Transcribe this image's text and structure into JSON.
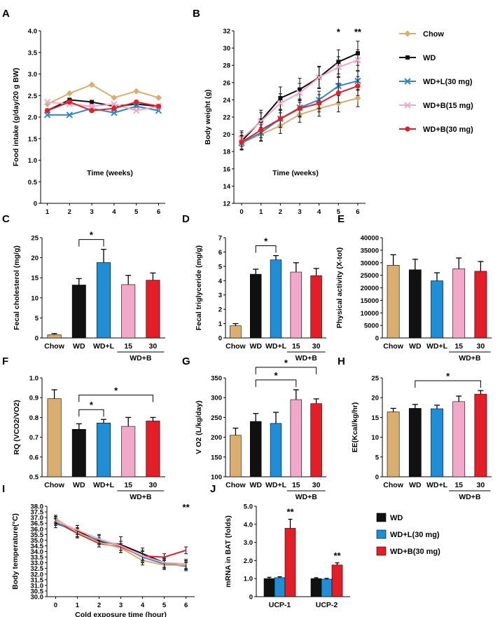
{
  "legend_top": {
    "entries": [
      {
        "name": "Chow",
        "color": "#D9AE6E",
        "marker": "diamond"
      },
      {
        "name": "WD",
        "color": "#111111",
        "marker": "square"
      },
      {
        "name": "WD+L(30 mg)",
        "color": "#2F86C8",
        "marker": "x"
      },
      {
        "name": "WD+B(15 mg)",
        "color": "#F2A9C9",
        "marker": "x"
      },
      {
        "name": "WD+B(30 mg)",
        "color": "#E41E26",
        "marker": "circle"
      }
    ]
  },
  "legend_j": {
    "entries": [
      {
        "name": "WD",
        "color": "#111111"
      },
      {
        "name": "WD+L(30 mg)",
        "color": "#1E8FD6"
      },
      {
        "name": "WD+B(30 mg)",
        "color": "#E41E26"
      }
    ]
  },
  "chart_data": [
    {
      "id": "A",
      "type": "line",
      "panel_label": "A",
      "ylabel": "Food intake (g/day/20 g BW)",
      "xlabel": "Time (weeks)",
      "x": [
        1,
        2,
        3,
        4,
        5,
        6
      ],
      "xlim": [
        0.7,
        6.3
      ],
      "ylim": [
        0,
        4.0
      ],
      "yticks": [
        "0",
        "0.5",
        "1.0",
        "1.5",
        "2.0",
        "2.5",
        "3.0",
        "3.5",
        "4.0"
      ],
      "xticks": [
        "1",
        "2",
        "3",
        "4",
        "5",
        "6"
      ],
      "series": [
        {
          "name": "Chow",
          "values": [
            2.3,
            2.55,
            2.75,
            2.45,
            2.6,
            2.45
          ]
        },
        {
          "name": "WD",
          "values": [
            2.15,
            2.4,
            2.35,
            2.25,
            2.3,
            2.25
          ]
        },
        {
          "name": "WD+L(30 mg)",
          "values": [
            2.05,
            2.05,
            2.2,
            2.1,
            2.25,
            2.15
          ]
        },
        {
          "name": "WD+B(15 mg)",
          "values": [
            2.35,
            2.3,
            2.25,
            2.3,
            2.15,
            2.25
          ]
        },
        {
          "name": "WD+B(30 mg)",
          "values": [
            2.15,
            2.35,
            2.15,
            2.2,
            2.35,
            2.25
          ]
        }
      ]
    },
    {
      "id": "B",
      "type": "line",
      "panel_label": "B",
      "ylabel": "Body weight (g)",
      "xlabel": "Time (weeks)",
      "x": [
        0,
        1,
        2,
        3,
        4,
        5,
        6
      ],
      "xlim": [
        -0.4,
        6.4
      ],
      "ylim": [
        12,
        32
      ],
      "yticks": [
        "12",
        "14",
        "16",
        "18",
        "20",
        "22",
        "24",
        "26",
        "28",
        "30",
        "32"
      ],
      "xticks": [
        "0",
        "1",
        "2",
        "3",
        "4",
        "5",
        "6"
      ],
      "annotations": [
        {
          "x": 5,
          "text": "*"
        },
        {
          "x": 6,
          "text": "**"
        }
      ],
      "series": [
        {
          "name": "Chow",
          "values": [
            19.0,
            20.0,
            21.0,
            22.3,
            23.0,
            23.6,
            24.2
          ],
          "err": [
            0.8,
            0.8,
            0.9,
            0.9,
            0.9,
            1.0,
            1.0
          ]
        },
        {
          "name": "WD",
          "values": [
            19.2,
            21.6,
            24.2,
            25.2,
            26.6,
            28.4,
            29.4
          ],
          "err": [
            1.0,
            1.2,
            1.3,
            1.3,
            1.3,
            1.4,
            1.4
          ]
        },
        {
          "name": "WD+L(30 mg)",
          "values": [
            19.0,
            20.2,
            21.8,
            23.1,
            24.0,
            25.6,
            26.2
          ],
          "err": [
            0.8,
            0.9,
            1.0,
            1.0,
            1.0,
            1.1,
            1.1
          ]
        },
        {
          "name": "WD+B(15 mg)",
          "values": [
            19.5,
            21.5,
            23.6,
            24.8,
            26.6,
            27.8,
            28.6
          ],
          "err": [
            0.9,
            1.0,
            1.1,
            1.1,
            1.2,
            1.2,
            1.2
          ]
        },
        {
          "name": "WD+B(30 mg)",
          "values": [
            19.1,
            20.5,
            21.8,
            23.0,
            23.6,
            24.8,
            25.6
          ],
          "err": [
            0.8,
            0.9,
            1.0,
            1.0,
            1.0,
            1.1,
            1.1
          ]
        }
      ]
    },
    {
      "id": "C",
      "type": "bar",
      "panel_label": "C",
      "ylabel": "Fecal cholesterol (mg/g)",
      "categories": [
        "Chow",
        "WD",
        "WD+L",
        "15",
        "30"
      ],
      "group_label": "WD+B",
      "values": [
        0.8,
        13.2,
        18.8,
        13.3,
        14.4
      ],
      "err": [
        0.3,
        1.6,
        3.3,
        2.3,
        1.8
      ],
      "ylim": [
        0,
        25
      ],
      "yticks": [
        "0",
        "5",
        "10",
        "15",
        "20",
        "25"
      ],
      "sig": [
        {
          "from": 1,
          "to": 2,
          "text": "*"
        }
      ]
    },
    {
      "id": "D",
      "type": "bar",
      "panel_label": "D",
      "ylabel": "Fecal triglyceride (mg/g)",
      "categories": [
        "Chow",
        "WD",
        "WD+L",
        "15",
        "30"
      ],
      "group_label": "WD+B",
      "values": [
        0.85,
        4.45,
        5.45,
        4.6,
        4.35
      ],
      "err": [
        0.15,
        0.35,
        0.3,
        0.65,
        0.5
      ],
      "ylim": [
        0,
        7
      ],
      "yticks": [
        "0",
        "1",
        "2",
        "3",
        "4",
        "5",
        "6",
        "7"
      ],
      "sig": [
        {
          "from": 1,
          "to": 2,
          "text": "*"
        }
      ]
    },
    {
      "id": "E",
      "type": "bar",
      "panel_label": "E",
      "ylabel": "Physical activity (X-tot)",
      "categories": [
        "Chow",
        "WD",
        "WD+L",
        "15",
        "30"
      ],
      "group_label": "WD+B",
      "values": [
        29000,
        27200,
        22800,
        27600,
        26600
      ],
      "err": [
        4200,
        4200,
        3200,
        4300,
        3900
      ],
      "ylim": [
        0,
        40000
      ],
      "yticks": [
        "0",
        "5000",
        "10000",
        "15000",
        "20000",
        "25000",
        "30000",
        "35000",
        "40000"
      ],
      "sig": []
    },
    {
      "id": "F",
      "type": "bar",
      "panel_label": "F",
      "ylabel": "RQ (VCO2/VO2)",
      "categories": [
        "Chow",
        "WD",
        "WD+L",
        "15",
        "30"
      ],
      "group_label": "WD+B",
      "values": [
        0.895,
        0.74,
        0.772,
        0.755,
        0.782
      ],
      "err": [
        0.045,
        0.028,
        0.018,
        0.045,
        0.018
      ],
      "ylim": [
        0.5,
        1.0
      ],
      "yticks": [
        "0.5",
        "0.6",
        "0.7",
        "0.8",
        "0.9",
        "1.0"
      ],
      "sig": [
        {
          "from": 1,
          "to": 2,
          "text": "*"
        },
        {
          "from": 1,
          "to": 4,
          "text": "*"
        }
      ]
    },
    {
      "id": "G",
      "type": "bar",
      "panel_label": "G",
      "ylabel": "V O2 (L/kg/day)",
      "categories": [
        "Chow",
        "WD",
        "WD+L",
        "15",
        "30"
      ],
      "group_label": "WD+B",
      "values": [
        205,
        240,
        235,
        295,
        285
      ],
      "err": [
        18,
        20,
        28,
        25,
        12
      ],
      "ylim": [
        100,
        350
      ],
      "yticks": [
        "100",
        "150",
        "200",
        "250",
        "300",
        "350"
      ],
      "sig": [
        {
          "from": 1,
          "to": 3,
          "text": "*"
        },
        {
          "from": 1,
          "to": 4,
          "text": "*"
        }
      ]
    },
    {
      "id": "H",
      "type": "bar",
      "panel_label": "H",
      "ylabel": "EE(Kcal/kg/hr)",
      "categories": [
        "Chow",
        "WD",
        "WD+L",
        "15",
        "30"
      ],
      "group_label": "WD+B",
      "values": [
        16.4,
        17.3,
        17.2,
        19.0,
        20.9
      ],
      "err": [
        0.9,
        1.0,
        0.9,
        1.4,
        0.9
      ],
      "ylim": [
        0,
        25
      ],
      "yticks": [
        "0",
        "5",
        "10",
        "15",
        "20",
        "25"
      ],
      "sig": [
        {
          "from": 1,
          "to": 4,
          "text": "*"
        }
      ]
    },
    {
      "id": "I",
      "type": "line",
      "panel_label": "I",
      "ylabel": "Body temperature(°C)",
      "xlabel": "Cold exposure time (hour)",
      "x": [
        0,
        1,
        2,
        3,
        4,
        5,
        6
      ],
      "xlim": [
        -0.4,
        6.4
      ],
      "ylim": [
        30.0,
        38.0
      ],
      "yticks": [
        "30.0",
        "30.5",
        "31.0",
        "31.5",
        "32.0",
        "32.5",
        "33.0",
        "33.5",
        "34.0",
        "34.5",
        "35.0",
        "35.5",
        "36.0",
        "36.5",
        "37.0",
        "37.5",
        "38.0"
      ],
      "xticks": [
        "0",
        "1",
        "2",
        "3",
        "4",
        "5",
        "6"
      ],
      "annotations": [
        {
          "x": 6,
          "text": "**"
        }
      ],
      "series": [
        {
          "name": "WD",
          "values": [
            36.5,
            35.8,
            34.9,
            34.6,
            33.8,
            33.0,
            32.7
          ],
          "err": [
            0.4,
            0.5,
            0.5,
            0.7,
            0.5,
            0.4,
            0.4
          ]
        },
        {
          "name": "WD+L(30 mg)",
          "values": [
            36.6,
            35.6,
            35.0,
            34.5,
            33.5,
            32.9,
            32.7
          ],
          "err": [
            0.3,
            0.4,
            0.4,
            0.4,
            0.5,
            0.4,
            0.3
          ]
        },
        {
          "name": "WD+B(30 mg)",
          "values": [
            36.8,
            35.6,
            34.7,
            34.4,
            33.6,
            33.5,
            34.1
          ],
          "err": [
            0.3,
            0.4,
            0.3,
            0.5,
            0.5,
            0.3,
            0.3
          ]
        },
        {
          "name": "Chow",
          "values": [
            36.9,
            35.7,
            34.8,
            34.3,
            33.2,
            32.8,
            32.8
          ],
          "err": [
            0.3,
            0.4,
            0.4,
            0.4,
            0.4,
            0.4,
            0.4
          ]
        },
        {
          "name": "WD+B(15 mg)",
          "values": [
            36.7,
            35.9,
            35.1,
            34.5,
            33.6,
            33.0,
            32.9
          ],
          "err": [
            0.3,
            0.4,
            0.4,
            0.4,
            0.4,
            0.4,
            0.4
          ]
        }
      ]
    },
    {
      "id": "J",
      "type": "bar",
      "panel_label": "J",
      "ylabel": "mRNA in BAT (folds)",
      "categories": [
        "UCP-1",
        "UCP-2"
      ],
      "series": [
        {
          "name": "WD",
          "values": [
            1.0,
            1.0
          ],
          "err": [
            0.07,
            0.05
          ]
        },
        {
          "name": "WD+L(30 mg)",
          "values": [
            1.05,
            0.97
          ],
          "err": [
            0.05,
            0.04
          ]
        },
        {
          "name": "WD+B(30 mg)",
          "values": [
            3.78,
            1.75
          ],
          "err": [
            0.5,
            0.12
          ]
        }
      ],
      "ylim": [
        0,
        5.0
      ],
      "yticks": [
        "0",
        "1.0",
        "2.0",
        "3.0",
        "4.0",
        "5.0"
      ],
      "annotations": [
        {
          "cat": 0,
          "text": "**"
        },
        {
          "cat": 1,
          "text": "**"
        }
      ]
    }
  ]
}
